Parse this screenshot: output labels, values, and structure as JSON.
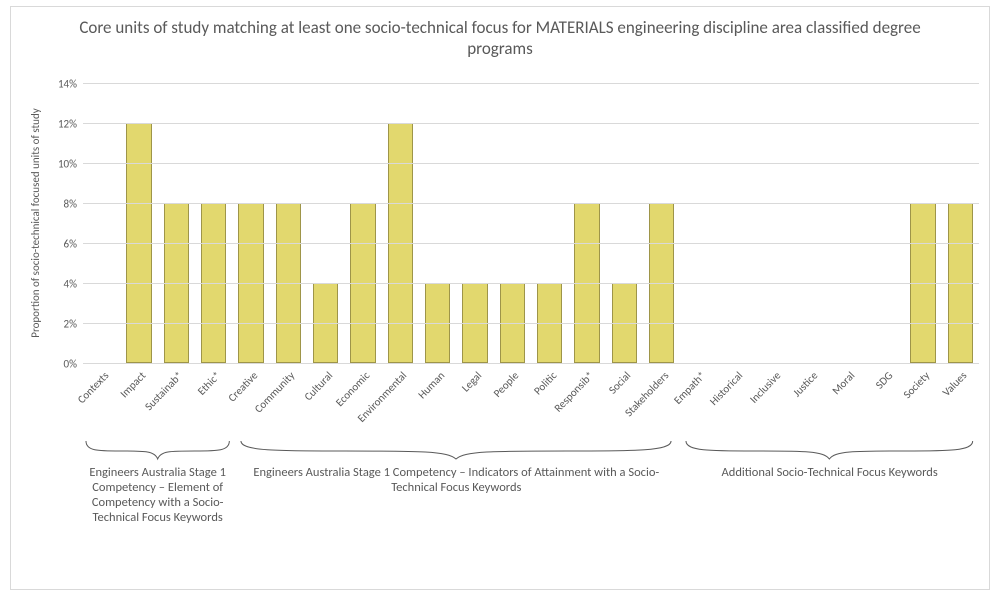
{
  "chart": {
    "type": "bar",
    "title": "Core units of study matching at least one socio-technical focus for MATERIALS engineering discipline area classified degree programs",
    "title_color": "#595959",
    "title_fontsize": 17,
    "y_axis_title": "Proportion of socio-technical focused units of study",
    "background_color": "#ffffff",
    "border_color": "#d9d9d9",
    "grid_color": "#d9d9d9",
    "label_color": "#595959",
    "label_fontsize": 11,
    "ylim": [
      0,
      14
    ],
    "ytick_step": 2,
    "ytick_labels": [
      "0%",
      "2%",
      "4%",
      "6%",
      "8%",
      "10%",
      "12%",
      "14%"
    ],
    "bar_color": "#e2d86e",
    "bar_border_color": "#9e9549",
    "bar_width": 0.68,
    "categories": [
      "Contexts",
      "Impact",
      "Sustainab*",
      "Ethic*",
      "Creative",
      "Community",
      "Cultural",
      "Economic",
      "Environmental",
      "Human",
      "Legal",
      "People",
      "Politic",
      "Responsib*",
      "Social",
      "Stakeholders",
      "Empath*",
      "Historical",
      "Inclusive",
      "Justice",
      "Moral",
      "SDG",
      "Society",
      "Values"
    ],
    "values": [
      0,
      12,
      8,
      8,
      8,
      8,
      4,
      8,
      12,
      4,
      4,
      4,
      4,
      8,
      4,
      8,
      0,
      0,
      0,
      0,
      0,
      0,
      8,
      8
    ],
    "groups": [
      {
        "label": "Engineers Australia Stage 1 Competency – Element of Competency with a Socio-Technical Focus Keywords",
        "start": 0,
        "end": 3
      },
      {
        "label": "Engineers Australia Stage 1 Competency – Indicators of Attainment with a Socio-Technical Focus Keywords",
        "start": 4,
        "end": 15
      },
      {
        "label": "Additional Socio-Technical Focus Keywords",
        "start": 16,
        "end": 23
      }
    ],
    "brace_color": "#595959",
    "group_label_fontsize": 12.5
  }
}
